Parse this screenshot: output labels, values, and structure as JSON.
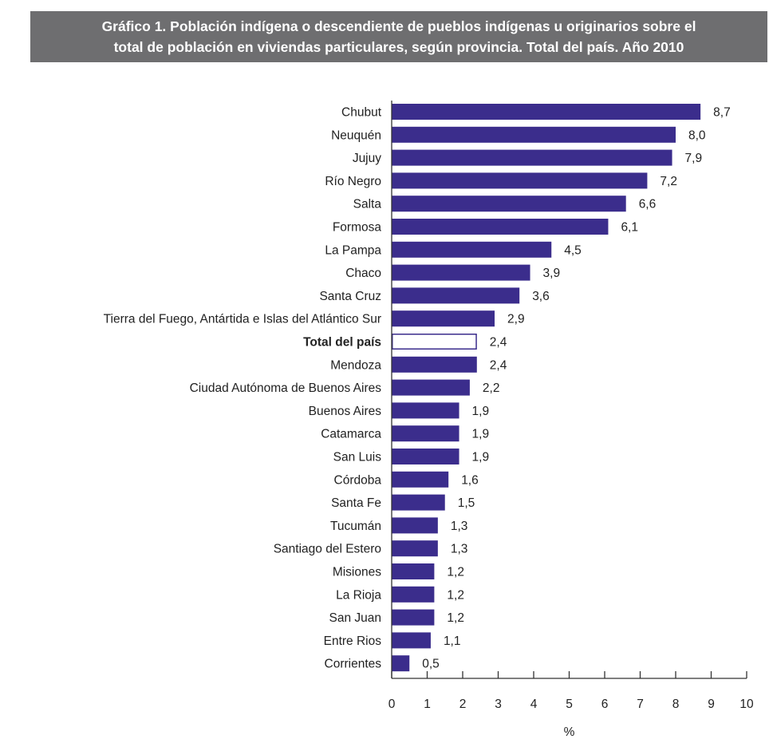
{
  "title_lines": [
    "Gráfico 1. Población indígena o descendiente de pueblos indígenas u originarios sobre el",
    "total de población en viviendas particulares, según provincia. Total del país. Año 2010"
  ],
  "colors": {
    "header_bg": "#6e6e70",
    "bar": "#3b2d8c",
    "bar_outline": "#3b2d8c",
    "total_fill": "#ffffff"
  },
  "chart_data": {
    "type": "bar",
    "orientation": "horizontal",
    "title": "Gráfico 1. Población indígena o descendiente de pueblos indígenas u originarios sobre el total de población en viviendas particulares, según provincia. Total del país. Año 2010",
    "xlabel": "%",
    "ylabel": "",
    "xlim": [
      0,
      10
    ],
    "xticks": [
      "0",
      "1",
      "2",
      "3",
      "4",
      "5",
      "6",
      "7",
      "8",
      "9",
      "10"
    ],
    "grid": false,
    "highlight_category": "Total del país",
    "categories": [
      "Chubut",
      "Neuquén",
      "Jujuy",
      "Río Negro",
      "Salta",
      "Formosa",
      "La Pampa",
      "Chaco",
      "Santa Cruz",
      "Tierra del Fuego, Antártida e Islas del Atlántico Sur",
      "Total del país",
      "Mendoza",
      "Ciudad Autónoma de Buenos Aires",
      "Buenos Aires",
      "Catamarca",
      "San Luis",
      "Córdoba",
      "Santa Fe",
      "Tucumán",
      "Santiago del Estero",
      "Misiones",
      "La Rioja",
      "San Juan",
      "Entre Rios",
      "Corrientes"
    ],
    "values": [
      8.7,
      8.0,
      7.9,
      7.2,
      6.6,
      6.1,
      4.5,
      3.9,
      3.6,
      2.9,
      2.4,
      2.4,
      2.2,
      1.9,
      1.9,
      1.9,
      1.6,
      1.5,
      1.3,
      1.3,
      1.2,
      1.2,
      1.2,
      1.1,
      0.5
    ],
    "value_labels": [
      "8,7",
      "8,0",
      "7,9",
      "7,2",
      "6,6",
      "6,1",
      "4,5",
      "3,9",
      "3,6",
      "2,9",
      "2,4",
      "2,4",
      "2,2",
      "1,9",
      "1,9",
      "1,9",
      "1,6",
      "1,5",
      "1,3",
      "1,3",
      "1,2",
      "1,2",
      "1,2",
      "1,1",
      "0,5"
    ]
  }
}
